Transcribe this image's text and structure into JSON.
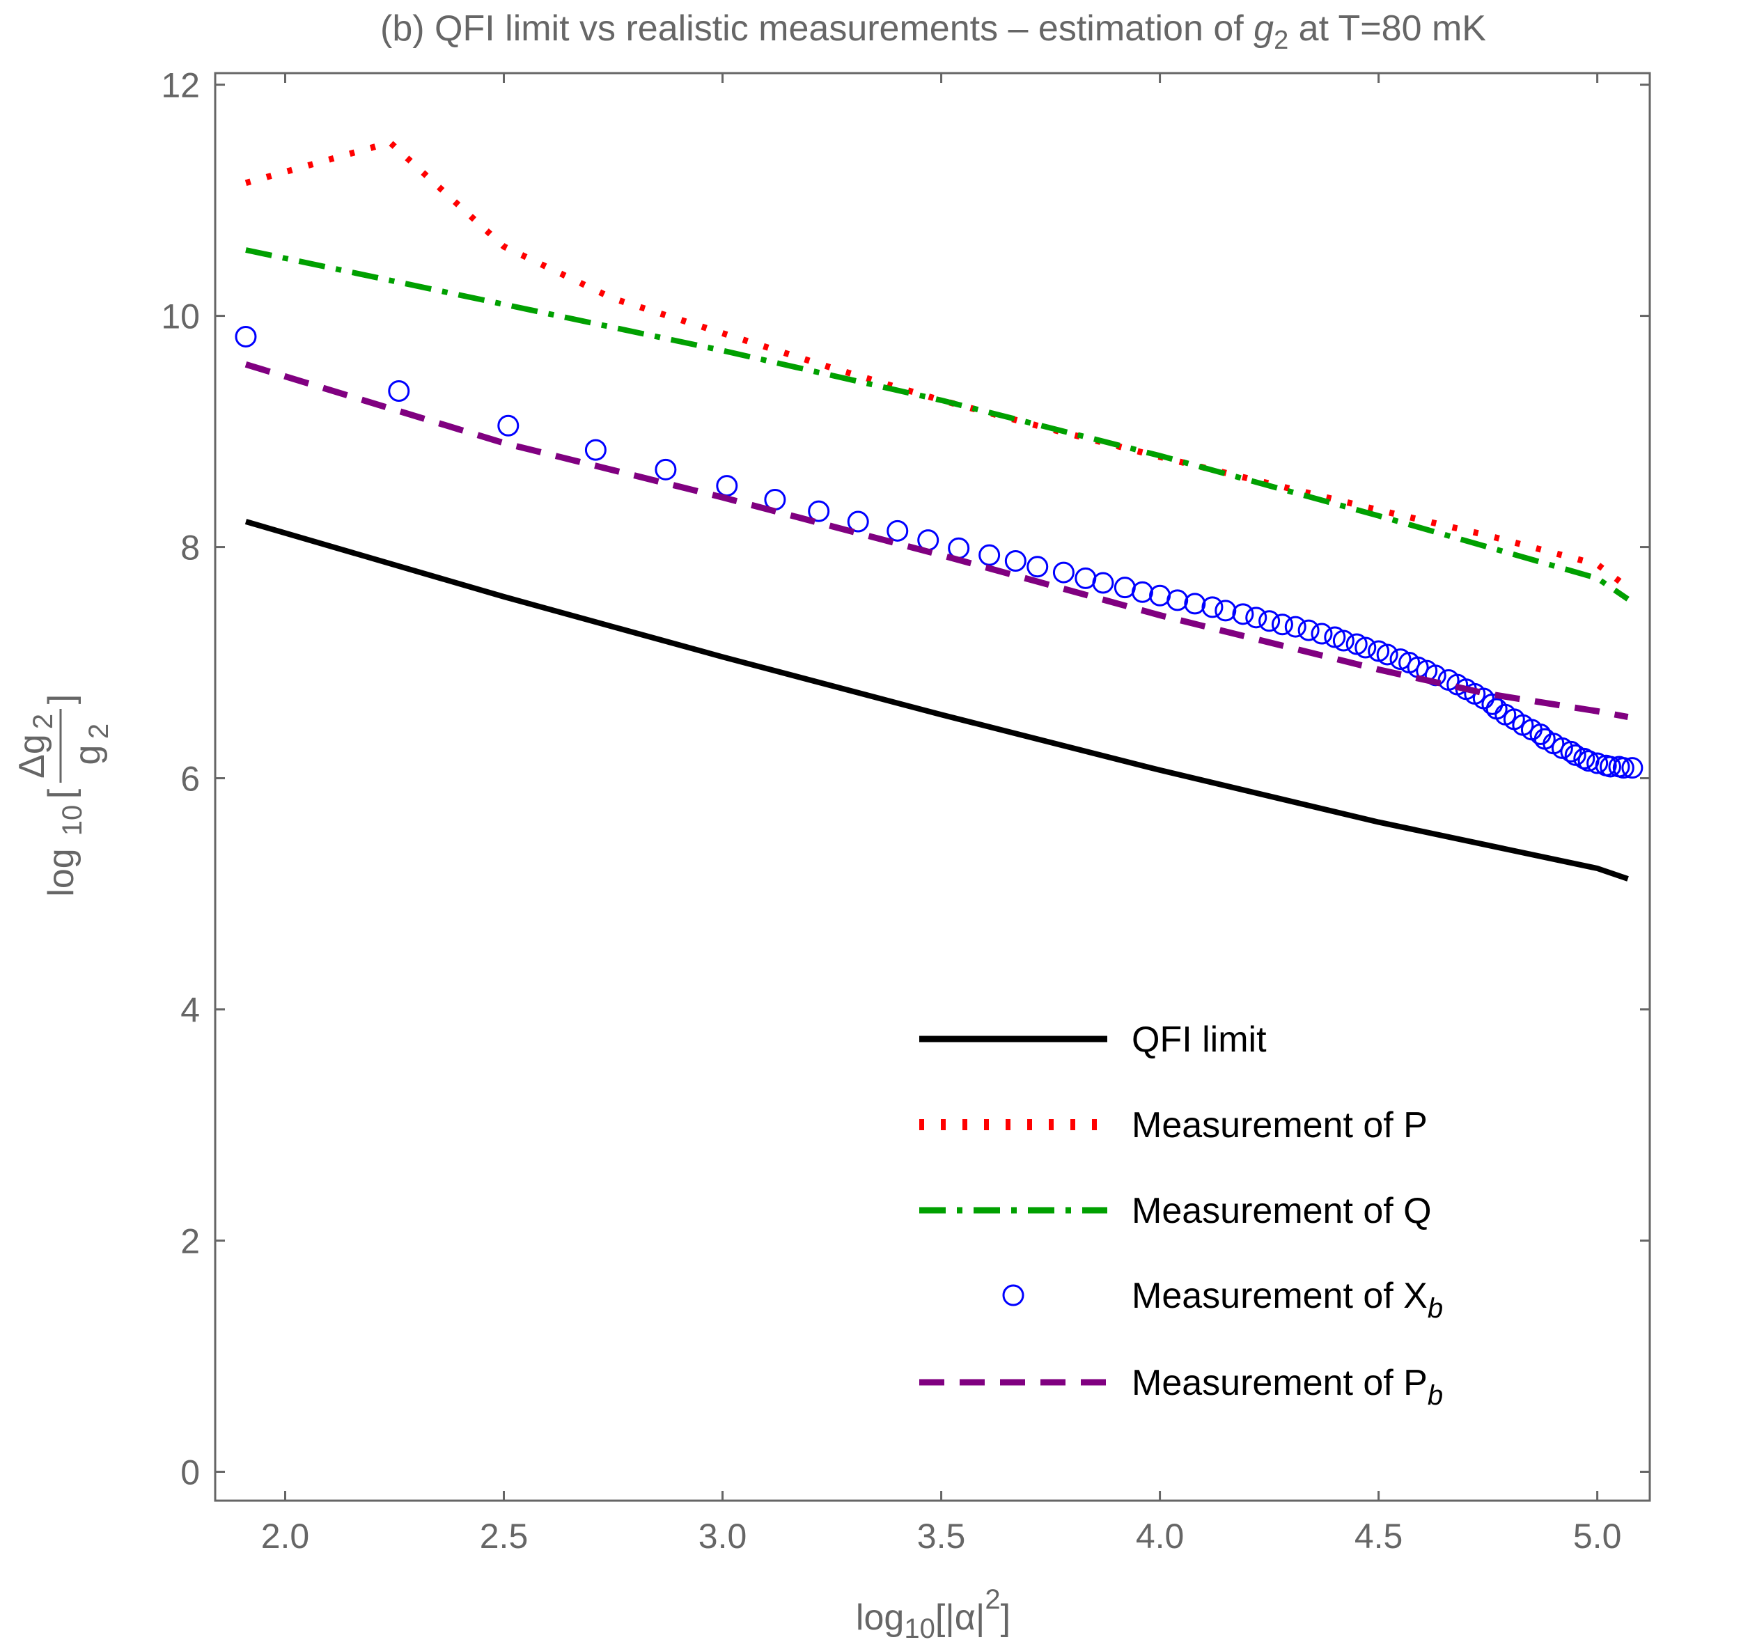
{
  "chart_data": {
    "type": "line",
    "title": {
      "prefix": "(b) QFI limit vs realistic measurements – estimation of ",
      "var": "g",
      "sub": "2",
      "suffix": " at T=80 mK"
    },
    "xlabel": {
      "pre": "log",
      "sub": "10",
      "mid": "[|α|",
      "sup": "2",
      "post": "]"
    },
    "ylabel": {
      "pre": "log",
      "sub": "10",
      "bracket_open": "[",
      "num": "Δg",
      "num_sub": "2",
      "den": "g",
      "den_sub": "2",
      "bracket_close": "]"
    },
    "xlim": [
      1.84,
      5.12
    ],
    "ylim": [
      -0.25,
      12.1
    ],
    "xticks": [
      2.0,
      2.5,
      3.0,
      3.5,
      4.0,
      4.5,
      5.0
    ],
    "xtick_labels": [
      "2.0",
      "2.5",
      "3.0",
      "3.5",
      "4.0",
      "4.5",
      "5.0"
    ],
    "yticks": [
      0,
      2,
      4,
      6,
      8,
      10,
      12
    ],
    "ytick_labels": [
      "0",
      "2",
      "4",
      "6",
      "8",
      "10",
      "12"
    ],
    "legend_position": "bottom-right",
    "series": [
      {
        "name": "QFI limit",
        "style": "solid",
        "color": "#000000",
        "x": [
          1.91,
          2.5,
          3.0,
          3.5,
          4.0,
          4.5,
          5.0,
          5.07
        ],
        "y": [
          8.22,
          7.57,
          7.05,
          6.55,
          6.07,
          5.62,
          5.22,
          5.13
        ]
      },
      {
        "name": "Measurement of P",
        "style": "dotted",
        "color": "#ff0000",
        "x": [
          1.91,
          2.24,
          2.5,
          2.75,
          3.0,
          3.25,
          3.5,
          3.75,
          4.0,
          4.25,
          4.5,
          4.75,
          5.0,
          5.07
        ],
        "y": [
          11.15,
          11.5,
          10.6,
          10.15,
          9.85,
          9.55,
          9.27,
          9.02,
          8.78,
          8.55,
          8.32,
          8.1,
          7.85,
          7.65
        ]
      },
      {
        "name": "Measurement of Q",
        "style": "dash-dot",
        "color": "#00a000",
        "x": [
          1.91,
          2.5,
          3.0,
          3.5,
          4.0,
          4.5,
          5.0,
          5.07
        ],
        "y": [
          10.57,
          10.1,
          9.7,
          9.27,
          8.79,
          8.27,
          7.73,
          7.55
        ]
      },
      {
        "name": "Measurement of X",
        "name_sub": "b",
        "style": "circles",
        "color": "#0000ff",
        "x": [
          1.91,
          2.26,
          2.51,
          2.71,
          2.87,
          3.01,
          3.12,
          3.22,
          3.31,
          3.4,
          3.47,
          3.54,
          3.61,
          3.67,
          3.72,
          3.78,
          3.83,
          3.87,
          3.92,
          3.96,
          4.0,
          4.04,
          4.08,
          4.12,
          4.15,
          4.19,
          4.22,
          4.25,
          4.28,
          4.31,
          4.34,
          4.37,
          4.4,
          4.42,
          4.45,
          4.47,
          4.5,
          4.52,
          4.55,
          4.57,
          4.59,
          4.61,
          4.63,
          4.66,
          4.68,
          4.7,
          4.72,
          4.74,
          4.76,
          4.77,
          4.79,
          4.81,
          4.83,
          4.85,
          4.87,
          4.88,
          4.9,
          4.92,
          4.94,
          4.95,
          4.97,
          4.98,
          5.0,
          5.02,
          5.03,
          5.05,
          5.06,
          5.08
        ],
        "y": [
          9.82,
          9.35,
          9.05,
          8.84,
          8.67,
          8.53,
          8.41,
          8.31,
          8.22,
          8.14,
          8.06,
          7.99,
          7.93,
          7.88,
          7.83,
          7.78,
          7.73,
          7.69,
          7.65,
          7.61,
          7.58,
          7.54,
          7.51,
          7.48,
          7.45,
          7.42,
          7.39,
          7.36,
          7.33,
          7.31,
          7.28,
          7.25,
          7.22,
          7.19,
          7.16,
          7.13,
          7.1,
          7.07,
          7.03,
          7.0,
          6.96,
          6.93,
          6.89,
          6.85,
          6.81,
          6.77,
          6.73,
          6.69,
          6.64,
          6.6,
          6.55,
          6.51,
          6.46,
          6.42,
          6.38,
          6.34,
          6.3,
          6.26,
          6.23,
          6.2,
          6.17,
          6.15,
          6.13,
          6.11,
          6.1,
          6.1,
          6.09,
          6.09
        ]
      },
      {
        "name": "Measurement of P",
        "name_sub": "b",
        "style": "dashed",
        "color": "#800080",
        "x": [
          1.91,
          2.5,
          3.0,
          3.5,
          4.0,
          4.5,
          4.75,
          5.0,
          5.07
        ],
        "y": [
          9.58,
          8.9,
          8.43,
          7.93,
          7.41,
          6.94,
          6.73,
          6.58,
          6.53
        ]
      }
    ]
  }
}
